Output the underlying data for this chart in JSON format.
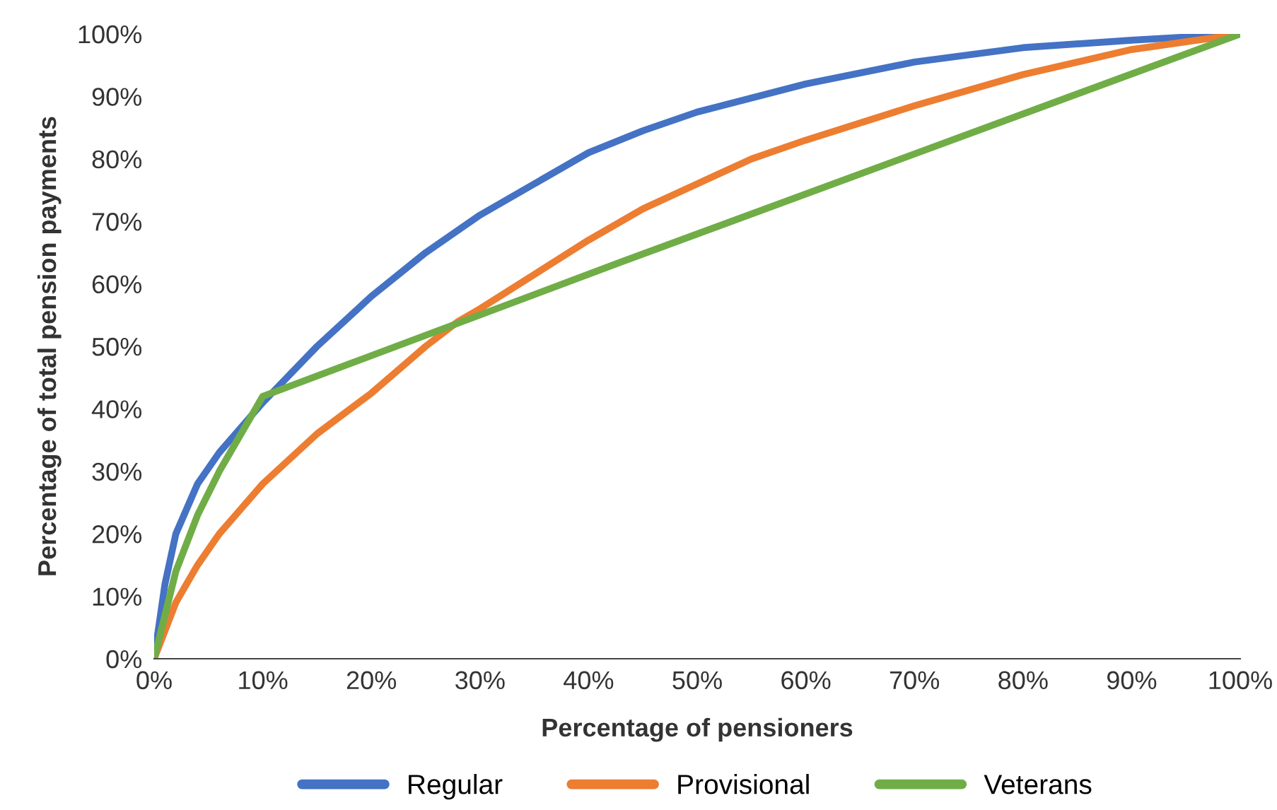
{
  "chart_data": {
    "type": "line",
    "xlabel": "Percentage of pensioners",
    "ylabel": "Percentage of total pension payments",
    "xlim": [
      0,
      100
    ],
    "ylim": [
      0,
      100
    ],
    "xticks": [
      {
        "value": 0,
        "label": "0%"
      },
      {
        "value": 10,
        "label": "10%"
      },
      {
        "value": 20,
        "label": "20%"
      },
      {
        "value": 30,
        "label": "30%"
      },
      {
        "value": 40,
        "label": "40%"
      },
      {
        "value": 50,
        "label": "50%"
      },
      {
        "value": 60,
        "label": "60%"
      },
      {
        "value": 70,
        "label": "70%"
      },
      {
        "value": 80,
        "label": "80%"
      },
      {
        "value": 90,
        "label": "90%"
      },
      {
        "value": 100,
        "label": "100%"
      }
    ],
    "yticks": [
      {
        "value": 0,
        "label": "0%"
      },
      {
        "value": 10,
        "label": "10%"
      },
      {
        "value": 20,
        "label": "20%"
      },
      {
        "value": 30,
        "label": "30%"
      },
      {
        "value": 40,
        "label": "40%"
      },
      {
        "value": 50,
        "label": "50%"
      },
      {
        "value": 60,
        "label": "60%"
      },
      {
        "value": 70,
        "label": "70%"
      },
      {
        "value": 80,
        "label": "80%"
      },
      {
        "value": 90,
        "label": "90%"
      },
      {
        "value": 100,
        "label": "100%"
      }
    ],
    "grid": false,
    "legend": "bottom",
    "marker": "none",
    "line_style": "solid",
    "series": [
      {
        "name": "Regular",
        "color": "#4472c4",
        "x": [
          0,
          1,
          2,
          4,
          6,
          8,
          10,
          15,
          20,
          25,
          30,
          35,
          40,
          45,
          50,
          60,
          70,
          80,
          90,
          100
        ],
        "values": [
          0,
          12,
          20,
          28,
          33,
          37,
          41,
          50,
          58,
          65,
          71,
          76,
          81,
          84.5,
          87.5,
          92,
          95.5,
          97.8,
          99,
          100
        ]
      },
      {
        "name": "Provisional",
        "color": "#ed7d31",
        "x": [
          0,
          2,
          4,
          6,
          8,
          10,
          15,
          20,
          25,
          28,
          30,
          35,
          40,
          45,
          50,
          55,
          60,
          70,
          80,
          90,
          100
        ],
        "values": [
          0,
          9,
          15,
          20,
          24,
          28,
          36,
          42.5,
          50,
          54,
          56,
          61.5,
          67,
          72,
          76,
          80,
          83,
          88.5,
          93.5,
          97.5,
          100
        ]
      },
      {
        "name": "Veterans",
        "color": "#70ad47",
        "x": [
          0,
          2,
          4,
          6,
          8,
          10,
          43,
          100
        ],
        "values": [
          0,
          14,
          23,
          30,
          36,
          42,
          63.5,
          100
        ]
      }
    ]
  }
}
